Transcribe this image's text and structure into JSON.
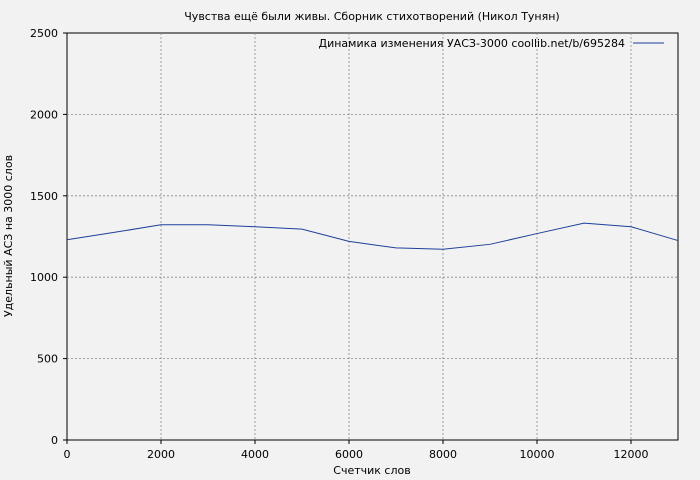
{
  "chart_data": {
    "type": "line",
    "title": "Чувства ещё были живы. Сборник стихотворений (Никол Тунян)",
    "xlabel": "Счетчик слов",
    "ylabel": "Удельный АСЗ на 3000 слов",
    "xlim": [
      0,
      13000
    ],
    "ylim": [
      0,
      2500
    ],
    "x_ticks": [
      0,
      2000,
      4000,
      6000,
      8000,
      10000,
      12000
    ],
    "y_ticks": [
      0,
      500,
      1000,
      1500,
      2000,
      2500
    ],
    "x_tick_labels": [
      "0",
      "2000",
      "4000",
      "6000",
      "8000",
      "10000",
      "12000"
    ],
    "y_tick_labels": [
      "0",
      "500",
      "1000",
      "1500",
      "2000",
      "2500"
    ],
    "grid": true,
    "legend_position": "top-right",
    "series": [
      {
        "name": "Динамика изменения УАСЗ-3000 coollib.net/b/695284",
        "color": "#1f3f99",
        "x": [
          0,
          1000,
          2000,
          3000,
          4000,
          5000,
          6000,
          7000,
          8000,
          9000,
          10000,
          11000,
          12000,
          13000
        ],
        "y": [
          1230,
          1275,
          1322,
          1322,
          1310,
          1295,
          1220,
          1180,
          1172,
          1202,
          1268,
          1332,
          1310,
          1225
        ]
      }
    ]
  }
}
